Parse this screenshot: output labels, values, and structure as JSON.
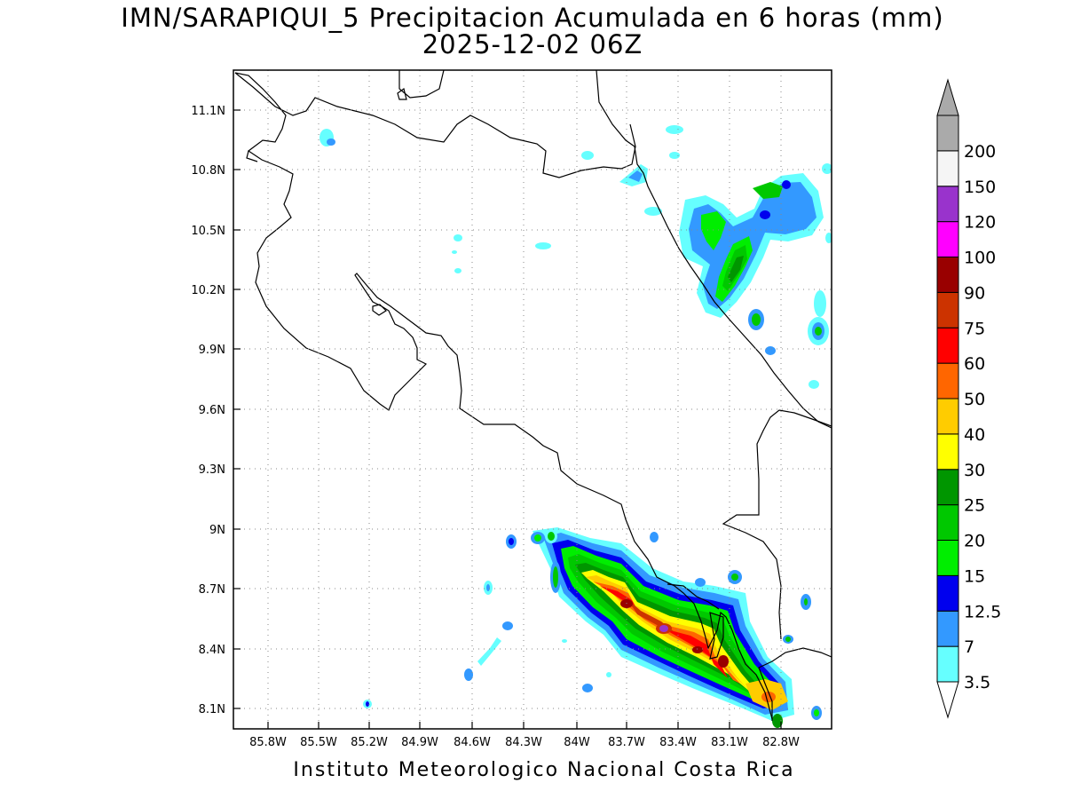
{
  "title": {
    "line1": "IMN/SARAPIQUI_5 Precipitacion Acumulada en 6 horas (mm)",
    "line2": "2025-12-02 06Z"
  },
  "footer": "Instituto Meteorologico Nacional Costa Rica",
  "axes": {
    "lon_ticks": [
      "85.8W",
      "85.5W",
      "85.2W",
      "84.9W",
      "84.6W",
      "84.3W",
      "84W",
      "83.7W",
      "83.4W",
      "83.1W",
      "82.8W"
    ],
    "lat_ticks": [
      "11.1N",
      "10.8N",
      "10.5N",
      "10.2N",
      "9.9N",
      "9.6N",
      "9.3N",
      "9N",
      "8.7N",
      "8.4N",
      "8.1N"
    ],
    "lon_range": [
      -86.15,
      -82.6
    ],
    "lat_range": [
      8.0,
      11.3
    ],
    "grid": "dotted"
  },
  "colorbar": {
    "levels": [
      "3.5",
      "7",
      "12.5",
      "15",
      "20",
      "25",
      "30",
      "40",
      "50",
      "60",
      "75",
      "90",
      "100",
      "120",
      "150",
      "200"
    ],
    "colors": [
      "#66ffff",
      "#3399ff",
      "#0000ee",
      "#00ee00",
      "#00c800",
      "#009600",
      "#ffff00",
      "#ffcc00",
      "#ff6600",
      "#ff0000",
      "#cc3300",
      "#990000",
      "#ff00ff",
      "#9933cc",
      "#f5f5f5",
      "#aaaaaa"
    ]
  }
}
